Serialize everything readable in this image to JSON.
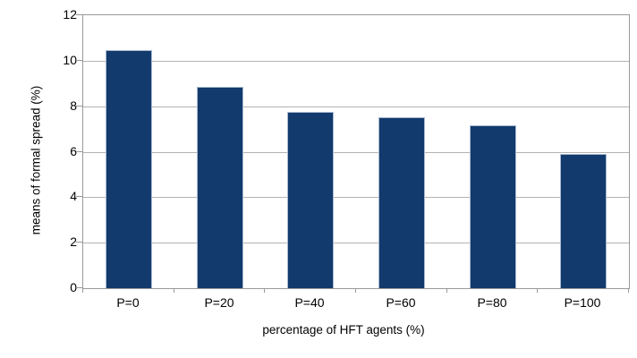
{
  "chart_data": {
    "type": "bar",
    "title": "",
    "categories": [
      "P=0",
      "P=20",
      "P=40",
      "P=60",
      "P=80",
      "P=100"
    ],
    "values": [
      10.45,
      8.85,
      7.75,
      7.5,
      7.15,
      5.9
    ],
    "xlabel": "percentage of HFT agents (%)",
    "ylabel": "means of formal spread (%)",
    "ylim": [
      0,
      12
    ],
    "yticks": [
      0,
      2,
      4,
      6,
      8,
      10,
      12
    ],
    "grid": true,
    "legend": false,
    "colors": {
      "bar_fill": "#123a6d",
      "bar_border": "#a9b9d0",
      "gridline": "#b3b3b3",
      "axis": "#999999",
      "text": "#000000",
      "background": "#ffffff"
    }
  }
}
